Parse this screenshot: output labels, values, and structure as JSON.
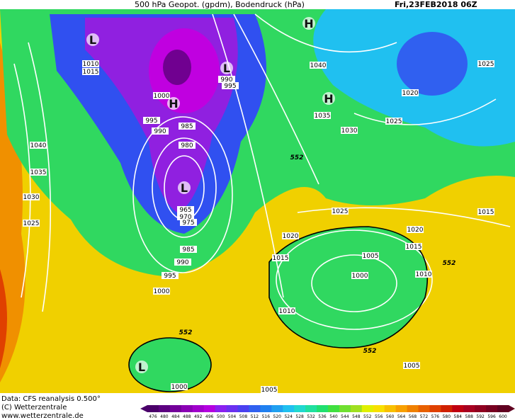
{
  "header": {
    "title": "500 hPa Geopot. (gpdm), Bodendruck (hPa)",
    "date": "Fri,23FEB2018 06Z"
  },
  "footer": {
    "source": "Data: CFS reanalysis 0.500°",
    "copyright": "(C) Wetterzentrale",
    "url": "www.wetterzentrale.de"
  },
  "map": {
    "isobar_labels": [
      "1010",
      "1015",
      "1000",
      "990",
      "995",
      "995",
      "990",
      "985",
      "980",
      "965",
      "970",
      "975",
      "985",
      "990",
      "995",
      "1000",
      "1040",
      "1035",
      "1030",
      "1025",
      "1040",
      "1035",
      "1030",
      "1025",
      "1020",
      "1025",
      "1025",
      "1020",
      "1015",
      "1020",
      "1015",
      "1005",
      "1000",
      "1010",
      "1015",
      "1010",
      "1005",
      "1000",
      "1005"
    ],
    "geopotential_labels": [
      "552",
      "552",
      "552",
      "552"
    ],
    "centers": [
      "L",
      "H",
      "H",
      "L",
      "H",
      "L",
      "L"
    ]
  },
  "colorbar": {
    "ticks": [
      476,
      480,
      484,
      488,
      492,
      496,
      500,
      504,
      508,
      512,
      516,
      520,
      524,
      528,
      532,
      536,
      540,
      544,
      548,
      552,
      556,
      560,
      564,
      568,
      572,
      576,
      580,
      584,
      588,
      592,
      596,
      600
    ],
    "colors": [
      "#4a006a",
      "#5c0080",
      "#73009a",
      "#8a00b4",
      "#a000cc",
      "#b400e0",
      "#8a20f0",
      "#6a30f0",
      "#4a40f0",
      "#3060f0",
      "#2080f0",
      "#20a0f0",
      "#20c0f0",
      "#20d8d0",
      "#20e0a0",
      "#20e070",
      "#40e040",
      "#70e030",
      "#a0e020",
      "#e0f000",
      "#f8e000",
      "#f8c000",
      "#f8a000",
      "#f08000",
      "#e86000",
      "#e04000",
      "#d02000",
      "#c00010",
      "#a80020",
      "#900020",
      "#780020",
      "#600020"
    ]
  }
}
